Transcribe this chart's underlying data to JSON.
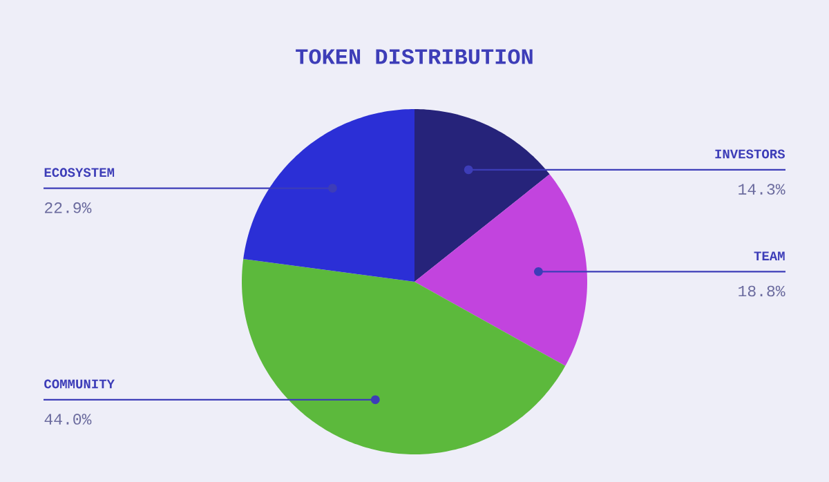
{
  "chart_data": {
    "type": "pie",
    "title": "TOKEN DISTRIBUTION",
    "categories": [
      "INVESTORS",
      "TEAM",
      "COMMUNITY",
      "ECOSYSTEM"
    ],
    "values": [
      14.3,
      18.8,
      44.0,
      22.9
    ],
    "value_labels": [
      "14.3%",
      "18.8%",
      "44.0%",
      "22.9%"
    ],
    "colors": [
      "#26237a",
      "#c244de",
      "#5cb93c",
      "#2b2fd6"
    ]
  }
}
